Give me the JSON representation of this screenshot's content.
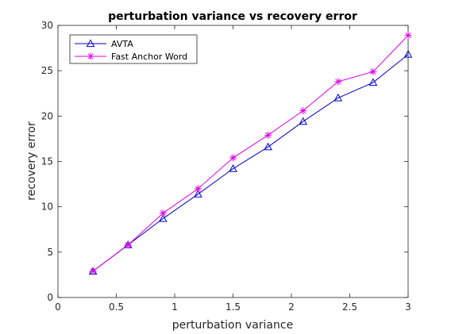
{
  "chart_data": {
    "type": "line",
    "title": "perturbation variance vs recovery error",
    "xlabel": "perturbation variance",
    "ylabel": "recovery error",
    "xlim": [
      0,
      3
    ],
    "ylim": [
      0,
      30
    ],
    "xticks": [
      "0",
      "0.5",
      "1",
      "1.5",
      "2",
      "2.5",
      "3"
    ],
    "yticks": [
      "0",
      "5",
      "10",
      "15",
      "20",
      "25",
      "30"
    ],
    "grid": false,
    "legend_position": "top-left",
    "x": [
      0.3,
      0.6,
      0.9,
      1.2,
      1.5,
      1.8,
      2.1,
      2.4,
      2.7,
      3.0
    ],
    "series": [
      {
        "name": "AVTA",
        "color": "#0000cc",
        "marker": "triangle",
        "values": [
          2.9,
          5.8,
          8.7,
          11.4,
          14.2,
          16.6,
          19.4,
          22.0,
          23.7,
          26.8
        ]
      },
      {
        "name": "Fast Anchor Word",
        "color": "#e000e0",
        "marker": "asterisk",
        "values": [
          2.9,
          5.8,
          9.3,
          12.0,
          15.4,
          17.9,
          20.6,
          23.8,
          24.9,
          28.9
        ]
      }
    ]
  }
}
